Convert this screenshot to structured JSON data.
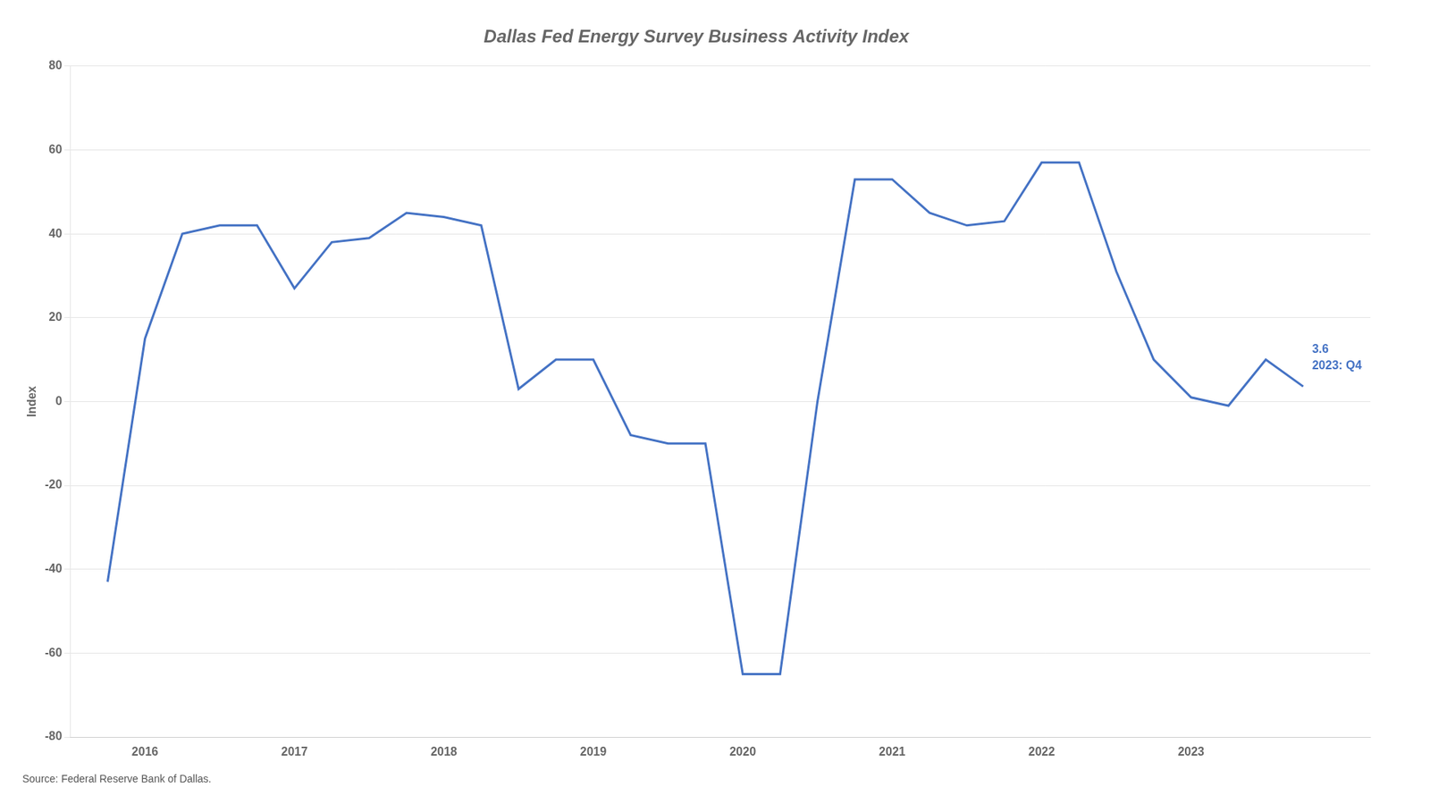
{
  "chart_data": {
    "type": "line",
    "title": "Dallas Fed Energy Survey Business Activity Index",
    "ylabel": "Index",
    "source": "Source: Federal Reserve Bank of Dallas.",
    "annotations": [
      "3.6\n2023: Q4"
    ],
    "color": "#4472C4",
    "x": [
      2015.75,
      2016.0,
      2016.25,
      2016.5,
      2016.75,
      2017.0,
      2017.25,
      2017.5,
      2017.75,
      2018.0,
      2018.25,
      2018.5,
      2018.75,
      2019.0,
      2019.25,
      2019.5,
      2019.75,
      2020.0,
      2020.25,
      2020.5,
      2020.75,
      2021.0,
      2021.25,
      2021.5,
      2021.75,
      2022.0,
      2022.25,
      2022.5,
      2022.75,
      2023.0,
      2023.25,
      2023.5,
      2023.75
    ],
    "values": [
      -43,
      15,
      40,
      42,
      42,
      27,
      38,
      39,
      45,
      44,
      42,
      3,
      10,
      10,
      -8,
      -10,
      -10,
      -65,
      -65,
      0,
      53,
      53,
      45,
      42,
      43,
      57,
      57,
      31,
      10,
      1,
      -1,
      10,
      3.6
    ],
    "xlim": [
      2015.5,
      2024.2
    ],
    "xticks": [
      2016,
      2017,
      2018,
      2019,
      2020,
      2021,
      2022,
      2023
    ],
    "ylim": [
      -80,
      80
    ],
    "yticks": [
      -80,
      -60,
      -40,
      -20,
      0,
      20,
      40,
      60,
      80
    ],
    "grid": "y"
  }
}
